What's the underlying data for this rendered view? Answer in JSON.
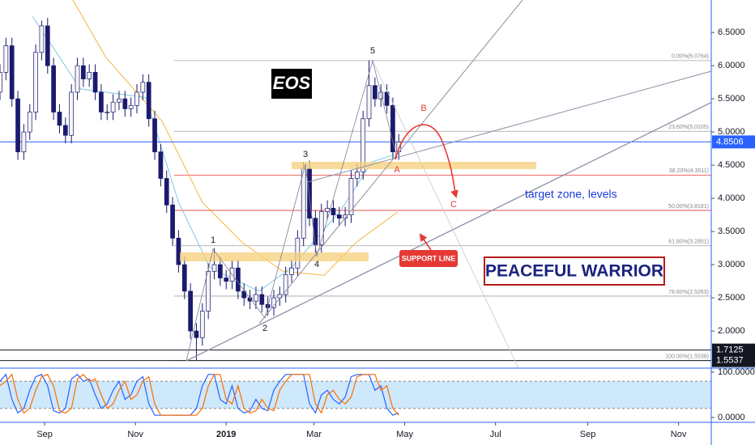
{
  "chart_data": [
    {
      "type": "candlestick",
      "title": "EOS",
      "watermark": "PEACEFUL WARRIOR",
      "note": "target zone, levels",
      "support_label": "SUPPORT LINE",
      "wave_labels": [
        "1",
        "2",
        "3",
        "4",
        "5"
      ],
      "abc_labels": [
        "A",
        "B",
        "C"
      ],
      "up_color": "#f5f5f5",
      "down_color": "#1a1a6e",
      "wick_color": "#1a1a6e",
      "x": [
        0,
        4,
        8,
        12,
        16,
        20,
        24,
        28,
        32,
        36,
        40,
        44,
        48,
        52,
        56,
        60,
        64,
        68,
        72,
        76,
        80,
        84,
        88,
        92,
        96,
        100,
        104,
        108,
        112,
        116,
        120,
        124,
        128,
        132,
        136,
        140,
        144,
        148,
        152,
        156,
        160,
        164,
        168,
        172,
        176,
        180,
        184,
        188,
        192,
        196,
        200,
        204,
        208,
        212,
        216,
        220,
        224,
        228,
        232,
        236,
        240,
        244,
        248,
        252,
        256,
        260,
        264,
        268
      ],
      "open": [
        5.6,
        5.9,
        6.3,
        5.5,
        4.7,
        5.0,
        5.3,
        6.2,
        6.6,
        6.0,
        5.3,
        5.1,
        4.95,
        5.6,
        6.0,
        5.8,
        5.9,
        5.6,
        5.3,
        5.3,
        5.45,
        5.5,
        5.35,
        5.4,
        5.6,
        5.75,
        5.2,
        4.7,
        4.3,
        3.9,
        3.4,
        3.0,
        2.6,
        2.0,
        1.9,
        2.3,
        2.9,
        3.0,
        2.8,
        2.75,
        2.95,
        2.6,
        2.5,
        2.45,
        2.55,
        2.4,
        2.35,
        2.5,
        2.55,
        2.85,
        2.95,
        3.4,
        4.45,
        3.7,
        3.3,
        3.8,
        3.85,
        3.75,
        3.7,
        3.75,
        4.3,
        4.4,
        5.2,
        5.7,
        5.5,
        5.6,
        5.4,
        4.7
      ],
      "high": [
        6.02,
        6.42,
        6.42,
        5.62,
        5.12,
        5.42,
        6.32,
        6.68,
        6.72,
        6.12,
        5.42,
        5.22,
        5.72,
        6.12,
        6.12,
        6.02,
        6.02,
        5.72,
        5.42,
        5.57,
        5.62,
        5.62,
        5.52,
        5.72,
        5.87,
        5.87,
        5.32,
        4.82,
        4.42,
        4.02,
        3.52,
        3.12,
        2.72,
        2.12,
        2.42,
        3.02,
        3.25,
        3.12,
        2.92,
        3.07,
        3.07,
        2.72,
        2.62,
        2.67,
        2.67,
        2.52,
        2.62,
        2.67,
        2.97,
        3.07,
        3.52,
        4.55,
        4.57,
        3.82,
        3.92,
        3.97,
        3.97,
        3.87,
        3.87,
        4.42,
        4.52,
        5.32,
        6.08,
        5.82,
        5.72,
        5.72,
        5.52,
        4.97
      ],
      "low": [
        5.48,
        5.78,
        5.38,
        4.58,
        4.58,
        4.88,
        5.18,
        6.08,
        5.88,
        5.18,
        4.98,
        4.83,
        4.83,
        5.48,
        5.68,
        5.68,
        5.48,
        5.18,
        5.18,
        5.18,
        5.33,
        5.23,
        5.23,
        5.28,
        5.48,
        5.08,
        4.58,
        4.18,
        3.78,
        3.28,
        2.88,
        2.48,
        1.88,
        1.56,
        1.78,
        2.18,
        2.78,
        2.68,
        2.63,
        2.63,
        2.48,
        2.38,
        2.33,
        2.33,
        2.28,
        2.23,
        2.23,
        2.38,
        2.43,
        2.73,
        2.83,
        3.28,
        3.58,
        3.18,
        3.18,
        3.68,
        3.63,
        3.58,
        3.58,
        3.63,
        4.18,
        4.28,
        5.08,
        5.38,
        5.38,
        5.28,
        4.58,
        4.58
      ],
      "close": [
        5.9,
        6.3,
        5.5,
        4.7,
        5.0,
        5.3,
        6.2,
        6.6,
        6.0,
        5.3,
        5.1,
        4.95,
        5.6,
        6.0,
        5.8,
        5.9,
        5.6,
        5.3,
        5.3,
        5.45,
        5.5,
        5.35,
        5.4,
        5.6,
        5.75,
        5.2,
        4.7,
        4.3,
        3.9,
        3.4,
        3.0,
        2.6,
        2.0,
        1.9,
        2.3,
        2.9,
        3.0,
        2.8,
        2.75,
        2.95,
        2.6,
        2.5,
        2.45,
        2.55,
        2.4,
        2.35,
        2.5,
        2.55,
        2.85,
        2.95,
        3.4,
        4.45,
        3.7,
        3.3,
        3.8,
        3.85,
        3.75,
        3.7,
        3.75,
        4.3,
        4.4,
        5.2,
        5.7,
        5.5,
        5.6,
        5.4,
        4.7,
        4.85
      ],
      "overlays": [
        {
          "color": "#f5b642",
          "x": [
            49,
            71,
            109,
            136,
            163,
            190,
            218,
            239,
            267
          ],
          "values": [
            6.99,
            6.13,
            5.16,
            3.94,
            3.33,
            2.9,
            2.84,
            3.33,
            3.79
          ]
        },
        {
          "color": "#7ec8e3",
          "x": [
            22,
            54,
            98,
            120,
            141,
            174,
            196,
            229,
            250,
            267
          ],
          "values": [
            6.74,
            5.65,
            5.52,
            3.94,
            2.96,
            2.6,
            2.96,
            3.82,
            4.55,
            4.67
          ]
        }
      ],
      "fib_levels": [
        {
          "value": 6.0764,
          "label": "0.00%(6.0764)",
          "color": "#a0a0a0"
        },
        {
          "value": 5.0105,
          "label": "23.60%(5.0105)",
          "color": "#a0a0a0"
        },
        {
          "value": 4.3511,
          "label": "38.20%(4.3511)",
          "color": "#e53935"
        },
        {
          "value": 3.8181,
          "label": "50.00%(3.8181)",
          "color": "#e53935"
        },
        {
          "value": 3.2851,
          "label": "61.80%(3.2851)",
          "color": "#a0a0a0"
        },
        {
          "value": 2.5263,
          "label": "78.60%(2.5263)",
          "color": "#a0a0a0"
        },
        {
          "value": 1.5538,
          "label": "100.00%(1.5538)",
          "color": "#a0a0a0"
        }
      ],
      "price_lines": [
        {
          "value": 4.8506,
          "color": "#2962ff"
        },
        {
          "value": 1.7125,
          "color": "#131722"
        },
        {
          "value": 1.5537,
          "color": "#131722"
        }
      ],
      "xlim": [
        0,
        478
      ],
      "xticks": [
        {
          "value": 30,
          "label": "Sep"
        },
        {
          "value": 91,
          "label": "Nov"
        },
        {
          "value": 152,
          "label": "2019"
        },
        {
          "value": 211,
          "label": "Mar"
        },
        {
          "value": 272,
          "label": "May"
        },
        {
          "value": 333,
          "label": "Jul"
        },
        {
          "value": 395,
          "label": "Sep"
        },
        {
          "value": 456,
          "label": "Nov"
        }
      ],
      "ylim": [
        1.44,
        6.99
      ],
      "yticks": [
        {
          "value": 2,
          "label": "2.0000"
        },
        {
          "value": 2.5,
          "label": "2.5000"
        },
        {
          "value": 3,
          "label": "3.0000"
        },
        {
          "value": 3.5,
          "label": "3.5000"
        },
        {
          "value": 4,
          "label": "4.0000"
        },
        {
          "value": 4.5,
          "label": "4.5000"
        },
        {
          "value": 5,
          "label": "5.0000"
        },
        {
          "value": 5.5,
          "label": "5.5000"
        },
        {
          "value": 6,
          "label": "6.0000"
        },
        {
          "value": 6.5,
          "label": "6.5000"
        }
      ]
    },
    {
      "type": "line",
      "x": [
        0,
        4,
        8,
        12,
        16,
        20,
        24,
        28,
        32,
        36,
        40,
        44,
        48,
        52,
        56,
        60,
        64,
        68,
        72,
        76,
        80,
        84,
        88,
        92,
        96,
        100,
        104,
        108,
        112,
        116,
        120,
        124,
        128,
        132,
        136,
        140,
        144,
        148,
        152,
        156,
        160,
        164,
        168,
        172,
        176,
        180,
        184,
        188,
        192,
        196,
        200,
        204,
        208,
        212,
        216,
        220,
        224,
        228,
        232,
        236,
        240,
        244,
        248,
        252,
        256,
        260,
        264,
        268
      ],
      "series": [
        {
          "color": "#2962ff",
          "values": [
            80,
            95,
            40,
            10,
            20,
            60,
            90,
            95,
            70,
            15,
            10,
            20,
            85,
            95,
            80,
            85,
            50,
            20,
            30,
            60,
            80,
            40,
            50,
            80,
            90,
            30,
            5,
            5,
            5,
            5,
            5,
            5,
            5,
            20,
            70,
            95,
            95,
            40,
            30,
            70,
            20,
            10,
            15,
            40,
            20,
            15,
            60,
            80,
            95,
            95,
            95,
            95,
            30,
            10,
            50,
            60,
            40,
            30,
            45,
            90,
            95,
            95,
            95,
            60,
            70,
            20,
            5,
            10
          ]
        },
        {
          "color": "#ff6d00",
          "values": [
            70,
            80,
            95,
            40,
            10,
            20,
            60,
            90,
            95,
            70,
            15,
            10,
            20,
            85,
            95,
            80,
            85,
            50,
            20,
            30,
            60,
            80,
            40,
            50,
            80,
            90,
            30,
            5,
            5,
            5,
            5,
            5,
            5,
            5,
            20,
            70,
            95,
            95,
            40,
            30,
            70,
            20,
            10,
            15,
            40,
            20,
            15,
            60,
            80,
            95,
            95,
            95,
            95,
            30,
            10,
            50,
            60,
            40,
            30,
            45,
            90,
            95,
            95,
            95,
            60,
            70,
            20,
            5
          ]
        }
      ],
      "bands": [
        20,
        80
      ],
      "ylim": [
        -10.7,
        108.9
      ],
      "yticks": [
        {
          "value": 0,
          "label": "0.0000"
        },
        {
          "value": 100,
          "label": "100.0000"
        }
      ]
    }
  ]
}
